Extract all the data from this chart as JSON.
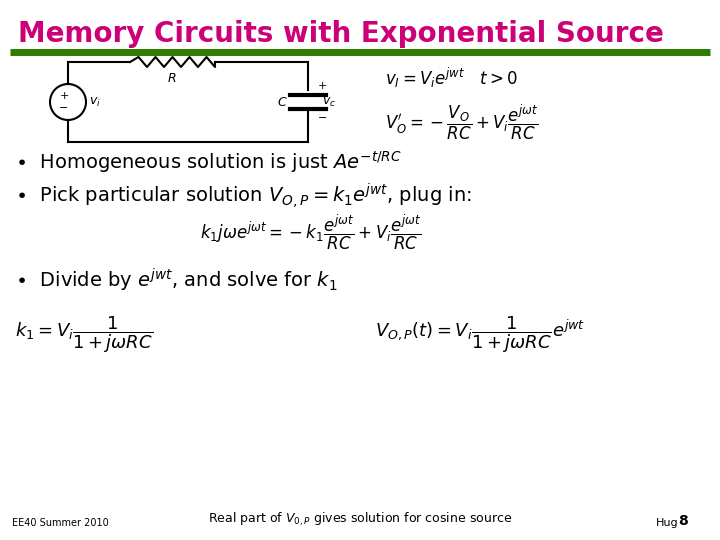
{
  "title": "Memory Circuits with Exponential Source",
  "title_color": "#CC0077",
  "title_fontsize": 20,
  "separator_color": "#2E7D00",
  "bg_color": "#FFFFFF",
  "footer_left": "EE40 Summer 2010",
  "footer_right": "Hug",
  "footer_page": "8"
}
